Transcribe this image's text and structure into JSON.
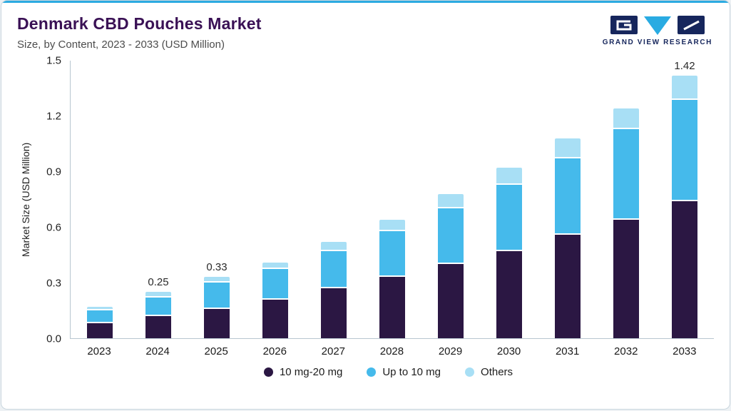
{
  "header": {
    "title": "Denmark CBD Pouches Market",
    "subtitle": "Size, by Content, 2023 - 2033 (USD Million)",
    "logo_text": "GRAND VIEW RESEARCH"
  },
  "colors": {
    "accent": "#2BAAE1",
    "title": "#3A1155",
    "logo_navy": "#16265C",
    "logo_cyan": "#29ABE2",
    "axis": "#b8c6d0"
  },
  "chart_data": {
    "type": "bar",
    "stacked": true,
    "title": "Denmark CBD Pouches Market Size, by Content, 2023 - 2033 (USD Million)",
    "categories": [
      "2023",
      "2024",
      "2025",
      "2026",
      "2027",
      "2028",
      "2029",
      "2030",
      "2031",
      "2032",
      "2033"
    ],
    "series": [
      {
        "name": "10 mg-20 mg",
        "color": "#2B1743",
        "values": [
          0.08,
          0.12,
          0.16,
          0.21,
          0.27,
          0.33,
          0.4,
          0.47,
          0.56,
          0.64,
          0.74
        ]
      },
      {
        "name": "Up to 10 mg",
        "color": "#45BAEB",
        "values": [
          0.07,
          0.1,
          0.14,
          0.165,
          0.2,
          0.25,
          0.3,
          0.36,
          0.41,
          0.49,
          0.55
        ]
      },
      {
        "name": "Others",
        "color": "#A8DFF5",
        "values": [
          0.02,
          0.03,
          0.03,
          0.035,
          0.05,
          0.06,
          0.08,
          0.09,
          0.11,
          0.11,
          0.13
        ]
      }
    ],
    "bar_labels": {
      "2024": "0.25",
      "2025": "0.33",
      "2033": "1.42"
    },
    "xlabel": "",
    "ylabel": "Market Size (USD Million)",
    "y_ticks": [
      "0.0",
      "0.3",
      "0.6",
      "0.9",
      "1.2",
      "1.5"
    ],
    "ylim": [
      0,
      1.5
    ],
    "grid": false,
    "legend_position": "bottom"
  }
}
